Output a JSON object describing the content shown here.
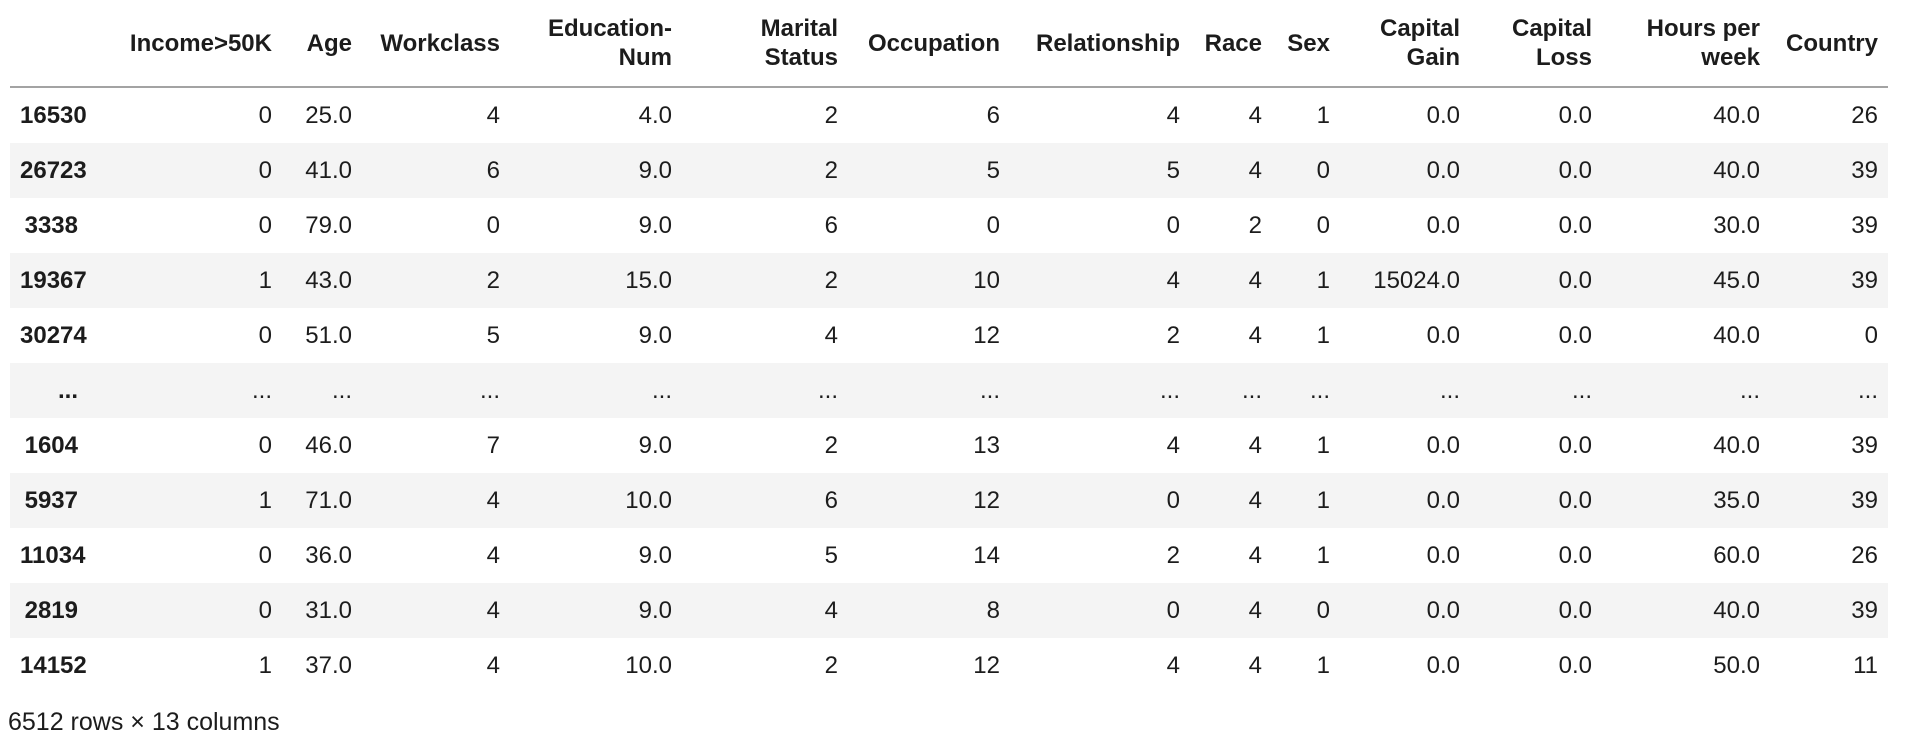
{
  "table": {
    "columns": [
      "Income>50K",
      "Age",
      "Workclass",
      "Education-Num",
      "Marital Status",
      "Occupation",
      "Relationship",
      "Race",
      "Sex",
      "Capital Gain",
      "Capital Loss",
      "Hours per week",
      "Country"
    ],
    "rows": [
      {
        "index": "16530",
        "cells": [
          "0",
          "25.0",
          "4",
          "4.0",
          "2",
          "6",
          "4",
          "4",
          "1",
          "0.0",
          "0.0",
          "40.0",
          "26"
        ]
      },
      {
        "index": "26723",
        "cells": [
          "0",
          "41.0",
          "6",
          "9.0",
          "2",
          "5",
          "5",
          "4",
          "0",
          "0.0",
          "0.0",
          "40.0",
          "39"
        ]
      },
      {
        "index": "3338",
        "cells": [
          "0",
          "79.0",
          "0",
          "9.0",
          "6",
          "0",
          "0",
          "2",
          "0",
          "0.0",
          "0.0",
          "30.0",
          "39"
        ]
      },
      {
        "index": "19367",
        "cells": [
          "1",
          "43.0",
          "2",
          "15.0",
          "2",
          "10",
          "4",
          "4",
          "1",
          "15024.0",
          "0.0",
          "45.0",
          "39"
        ]
      },
      {
        "index": "30274",
        "cells": [
          "0",
          "51.0",
          "5",
          "9.0",
          "4",
          "12",
          "2",
          "4",
          "1",
          "0.0",
          "0.0",
          "40.0",
          "0"
        ]
      },
      {
        "index": "...",
        "cells": [
          "...",
          "...",
          "...",
          "...",
          "...",
          "...",
          "...",
          "...",
          "...",
          "...",
          "...",
          "...",
          "..."
        ]
      },
      {
        "index": "1604",
        "cells": [
          "0",
          "46.0",
          "7",
          "9.0",
          "2",
          "13",
          "4",
          "4",
          "1",
          "0.0",
          "0.0",
          "40.0",
          "39"
        ]
      },
      {
        "index": "5937",
        "cells": [
          "1",
          "71.0",
          "4",
          "10.0",
          "6",
          "12",
          "0",
          "4",
          "1",
          "0.0",
          "0.0",
          "35.0",
          "39"
        ]
      },
      {
        "index": "11034",
        "cells": [
          "0",
          "36.0",
          "4",
          "9.0",
          "5",
          "14",
          "2",
          "4",
          "1",
          "0.0",
          "0.0",
          "60.0",
          "26"
        ]
      },
      {
        "index": "2819",
        "cells": [
          "0",
          "31.0",
          "4",
          "9.0",
          "4",
          "8",
          "0",
          "4",
          "0",
          "0.0",
          "0.0",
          "40.0",
          "39"
        ]
      },
      {
        "index": "14152",
        "cells": [
          "1",
          "37.0",
          "4",
          "10.0",
          "2",
          "12",
          "4",
          "4",
          "1",
          "0.0",
          "0.0",
          "50.0",
          "11"
        ]
      }
    ],
    "footer": "6512 rows × 13 columns"
  },
  "colors": {
    "row_stripe": "#f4f4f4",
    "header_border": "#a3a3a3",
    "text": "#1c1c1c",
    "background": "#ffffff"
  }
}
